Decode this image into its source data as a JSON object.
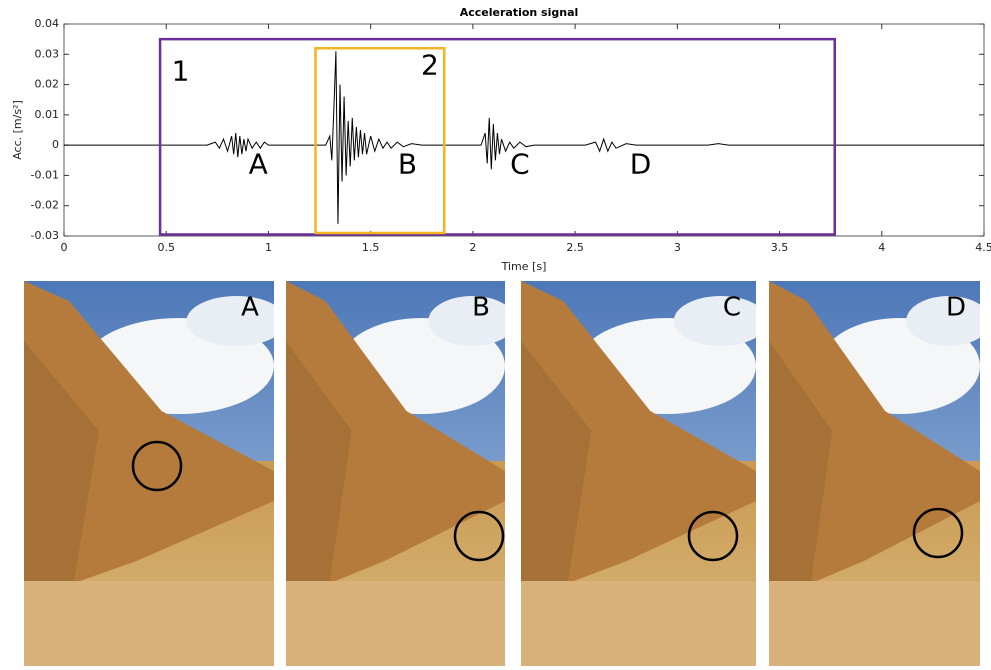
{
  "chart_data": {
    "type": "line",
    "title": "Acceleration signal",
    "x_label": "Time [s]",
    "y_label": "Acc. [m/s²]",
    "xlim": [
      0,
      4.5
    ],
    "ylim": [
      -0.03,
      0.04
    ],
    "xticks": [
      0,
      0.5,
      1,
      1.5,
      2,
      2.5,
      3,
      3.5,
      4,
      4.5
    ],
    "yticks": [
      -0.03,
      -0.02,
      -0.01,
      0,
      0.01,
      0.02,
      0.03,
      0.04
    ],
    "series": [
      {
        "color": "#000000",
        "x": [
          0,
          0.7,
          0.74,
          0.76,
          0.78,
          0.8,
          0.82,
          0.83,
          0.84,
          0.85,
          0.86,
          0.87,
          0.88,
          0.89,
          0.9,
          0.92,
          0.94,
          0.96,
          0.98,
          1.0,
          1.05,
          1.28,
          1.3,
          1.31,
          1.32,
          1.33,
          1.34,
          1.35,
          1.36,
          1.37,
          1.38,
          1.39,
          1.4,
          1.41,
          1.42,
          1.43,
          1.44,
          1.45,
          1.46,
          1.47,
          1.48,
          1.5,
          1.52,
          1.54,
          1.56,
          1.58,
          1.6,
          1.63,
          1.66,
          1.7,
          1.75,
          1.85,
          2.04,
          2.06,
          2.07,
          2.08,
          2.09,
          2.1,
          2.11,
          2.12,
          2.13,
          2.14,
          2.16,
          2.18,
          2.2,
          2.23,
          2.26,
          2.3,
          2.55,
          2.6,
          2.62,
          2.64,
          2.66,
          2.68,
          2.7,
          2.75,
          2.8,
          3.15,
          3.2,
          3.25,
          4.5
        ],
        "values": [
          0,
          0,
          0.001,
          -0.001,
          0.002,
          -0.002,
          0.003,
          -0.003,
          0.004,
          -0.004,
          0.003,
          -0.003,
          0.002,
          -0.002,
          0.002,
          -0.001,
          0.001,
          -0.001,
          0.001,
          0,
          0,
          0,
          0.003,
          -0.005,
          0.012,
          0.031,
          -0.026,
          0.02,
          -0.012,
          0.016,
          -0.01,
          0.008,
          -0.007,
          0.009,
          -0.005,
          0.006,
          -0.004,
          0.005,
          -0.003,
          0.004,
          -0.003,
          0.003,
          -0.002,
          0.002,
          -0.001,
          0.001,
          -0.001,
          0.001,
          -0.0005,
          0.0005,
          0,
          0,
          0,
          0.004,
          -0.006,
          0.009,
          -0.008,
          0.007,
          -0.005,
          0.004,
          -0.003,
          0.002,
          -0.002,
          0.001,
          -0.001,
          0.001,
          -0.0005,
          0,
          0,
          0.001,
          -0.002,
          0.002,
          -0.002,
          0.001,
          -0.001,
          0.0005,
          0,
          0,
          0.0005,
          0,
          0
        ]
      }
    ],
    "regions": [
      {
        "label": "1",
        "xlim": [
          0.47,
          3.77
        ],
        "ylim": [
          -0.0295,
          0.035
        ],
        "color": "#6a2f9a"
      },
      {
        "label": "2",
        "xlim": [
          1.23,
          1.86
        ],
        "ylim": [
          -0.029,
          0.032
        ],
        "color": "#f5b323"
      }
    ],
    "annotations": [
      {
        "text": "1",
        "x": 0.57,
        "y": 0.024
      },
      {
        "text": "2",
        "x": 1.79,
        "y": 0.026
      },
      {
        "text": "A",
        "x": 0.95,
        "y": -0.0068
      },
      {
        "text": "B",
        "x": 1.68,
        "y": -0.0068
      },
      {
        "text": "C",
        "x": 2.23,
        "y": -0.0068
      },
      {
        "text": "D",
        "x": 2.82,
        "y": -0.0068
      }
    ]
  },
  "photos": [
    "A",
    "B",
    "C",
    "D"
  ]
}
